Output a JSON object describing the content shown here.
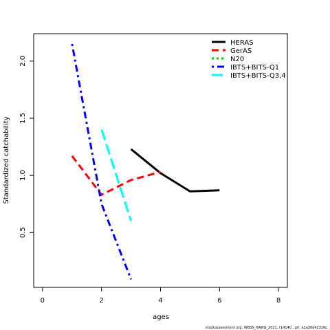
{
  "chart_data": {
    "type": "line",
    "xlabel": "ages",
    "ylabel": "Standardized catchability",
    "xlim": [
      -0.3,
      8.3
    ],
    "ylim": [
      0.02,
      2.24
    ],
    "xticks": [
      0,
      2,
      4,
      6,
      8
    ],
    "yticks": [
      0.5,
      1.0,
      1.5,
      2.0
    ],
    "xtick_labels": [
      "0",
      "2",
      "4",
      "6",
      "8"
    ],
    "ytick_labels": [
      "0.5",
      "1.0",
      "1.5",
      "2.0"
    ],
    "grid": false,
    "legend_position": "top-right",
    "series": [
      {
        "name": "HERAS",
        "color": "#000000",
        "dash": "solid",
        "x": [
          3,
          4,
          5,
          6
        ],
        "y": [
          1.23,
          1.02,
          0.86,
          0.87
        ]
      },
      {
        "name": "GerAS",
        "color": "#ff0000",
        "dash": "dashed",
        "x": [
          1,
          2,
          3,
          4
        ],
        "y": [
          1.17,
          0.83,
          0.96,
          1.03
        ]
      },
      {
        "name": "N20",
        "color": "#00cd00",
        "dash": "dotted",
        "x": [],
        "y": []
      },
      {
        "name": "IBTS+BITS-Q1",
        "color": "#0000ff",
        "dash": "dotdash",
        "x": [
          1,
          2,
          3
        ],
        "y": [
          2.15,
          0.75,
          0.09
        ]
      },
      {
        "name": "IBTS+BITS-Q3,4",
        "color": "#00ffff",
        "dash": "longdash",
        "x": [
          2,
          3
        ],
        "y": [
          1.4,
          0.6
        ]
      }
    ]
  },
  "footer": {
    "text": "stockassessment.org,  WBSS_HAWG_2021,  r14140 ,  git:  e2a30d42316c"
  }
}
